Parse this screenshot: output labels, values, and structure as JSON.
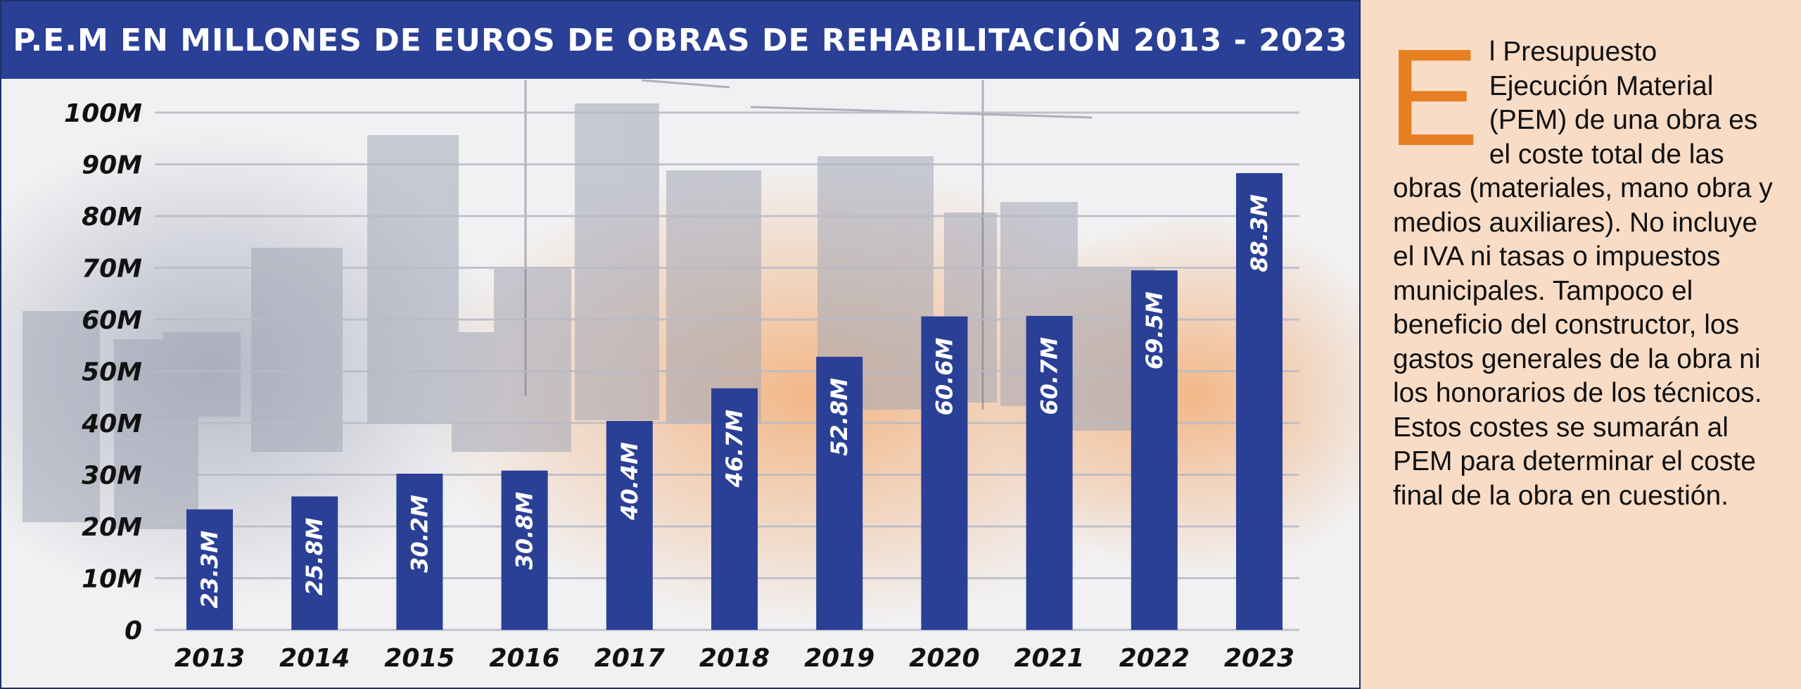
{
  "chart_data": {
    "type": "bar",
    "title": "P.E.M EN MILLONES DE EUROS DE OBRAS DE REHABILITACIÓN 2013 - 2023",
    "categories": [
      "2013",
      "2014",
      "2015",
      "2016",
      "2017",
      "2018",
      "2019",
      "2020",
      "2021",
      "2022",
      "2023"
    ],
    "values": [
      23.3,
      25.8,
      30.2,
      30.8,
      40.4,
      46.7,
      52.8,
      60.6,
      60.7,
      69.5,
      88.3
    ],
    "value_labels": [
      "23.3M",
      "25.8M",
      "30.2M",
      "30.8M",
      "40.4M",
      "46.7M",
      "52.8M",
      "60.6M",
      "60.7M",
      "69.5M",
      "88.3M"
    ],
    "y_ticks": [
      "0",
      "10M",
      "20M",
      "30M",
      "40M",
      "50M",
      "60M",
      "70M",
      "80M",
      "90M",
      "100M"
    ],
    "ylim": [
      0,
      100
    ],
    "xlabel": "",
    "ylabel": "",
    "grid": true,
    "bar_color": "#2a3f96",
    "header_color": "#2a3f96"
  },
  "sidebar": {
    "dropcap": "E",
    "text": "l Presupuesto Ejecución Material (PEM) de una obra es el coste total de las obras (materiales, mano obra y medios auxiliares). No incluye el IVA ni tasas o impuestos municipales. Tampoco el beneficio del constructor, los gastos generales de la obra ni los honorarios de los técnicos. Estos costes se sumarán al PEM para determinar el coste final de la obra en cuestión.",
    "dropcap_color": "#e67e22",
    "background": "#f8dcc6"
  }
}
